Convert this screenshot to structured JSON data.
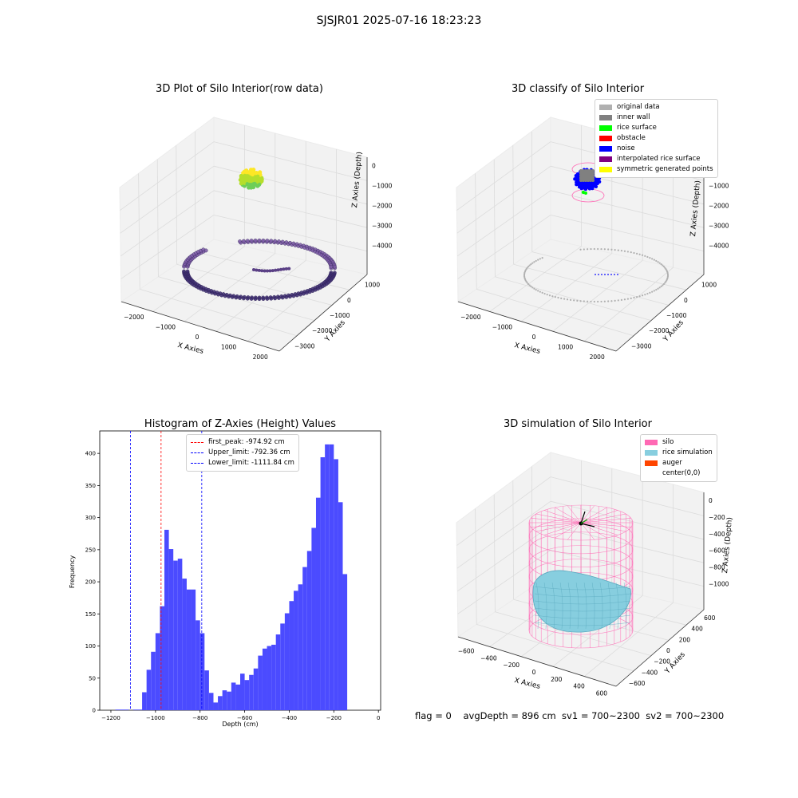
{
  "figure": {
    "suptitle": "SJSJR01 2025-07-16 18:23:23",
    "status_flag": "flag = 0",
    "status_text": "avgDepth = 896 cm  sv1 = 700~2300  sv2 = 700~2300"
  },
  "colors": {
    "hist_bar": "#4b4bff",
    "peak_line": "#ff0000",
    "limit_line": "#0000ff",
    "pane": "#f2f2f2",
    "silo": "#ff69b4",
    "rice": "#87cedf",
    "auger": "#ff4500"
  },
  "chart_data": [
    {
      "type": "scatter",
      "title": "3D Plot of Silo Interior(row data)",
      "xlabel": "X Axies",
      "ylabel": "Y Axies",
      "zlabel": "Z Axies (Depth)",
      "xticks": [
        "−2000",
        "−1000",
        "0",
        "1000",
        "2000"
      ],
      "yticks": [
        "1000",
        "0",
        "−1000",
        "−2000",
        "−3000"
      ],
      "zticks": [
        "0",
        "−1000",
        "−2000",
        "−3000",
        "−4000"
      ],
      "xlim": [
        -2300,
        2700
      ],
      "ylim": [
        -3000,
        1500
      ],
      "zlim": [
        -4500,
        200
      ],
      "colormap": "viridis"
    },
    {
      "type": "scatter",
      "title": "3D classify of Silo Interior",
      "xlabel": "X Axies",
      "ylabel": "Y Axies",
      "zlabel": "Z Axies (Depth)",
      "xticks": [
        "−2000",
        "−1000",
        "0",
        "1000",
        "2000"
      ],
      "yticks": [
        "1000",
        "0",
        "−1000",
        "−2000",
        "−3000"
      ],
      "zticks": [
        "0",
        "−1000",
        "−2000",
        "−3000",
        "−4000"
      ],
      "legend_position": "top-right",
      "legend": [
        {
          "label": "original data",
          "color": "#b0b0b0"
        },
        {
          "label": "inner wall",
          "color": "#808080"
        },
        {
          "label": "rice surface",
          "color": "#00ff00"
        },
        {
          "label": "obstacle",
          "color": "#ff0000"
        },
        {
          "label": "noise",
          "color": "#0000ff"
        },
        {
          "label": "interpolated rice surface",
          "color": "#800080"
        },
        {
          "label": "symmetric generated points",
          "color": "#ffff00"
        }
      ]
    },
    {
      "type": "bar",
      "title": "Histogram of Z-Axies (Height) Values",
      "xlabel": "Depth (cm)",
      "ylabel": "Frequency",
      "xlim": [
        -1250,
        10
      ],
      "ylim": [
        0,
        435
      ],
      "xticks": [
        -1200,
        -1000,
        -800,
        -600,
        -400,
        -200,
        0
      ],
      "yticks": [
        0,
        50,
        100,
        150,
        200,
        250,
        300,
        350,
        400
      ],
      "bin_width": 20,
      "bins_start": [
        -1180,
        -1160,
        -1140,
        -1120,
        -1100,
        -1080,
        -1060,
        -1040,
        -1020,
        -1000,
        -980,
        -960,
        -940,
        -920,
        -900,
        -880,
        -860,
        -840,
        -820,
        -800,
        -780,
        -760,
        -740,
        -720,
        -700,
        -680,
        -660,
        -640,
        -620,
        -600,
        -580,
        -560,
        -540,
        -520,
        -500,
        -480,
        -460,
        -440,
        -420,
        -400,
        -380,
        -360,
        -340,
        -320,
        -300,
        -280,
        -260,
        -240,
        -220,
        -200,
        -180,
        -160,
        -140,
        -120,
        -100,
        -80,
        -60
      ],
      "values": [
        1,
        1,
        1,
        0,
        1,
        1,
        28,
        63,
        91,
        120,
        162,
        281,
        251,
        233,
        236,
        205,
        188,
        188,
        140,
        120,
        62,
        27,
        12,
        22,
        31,
        29,
        43,
        40,
        57,
        47,
        55,
        65,
        85,
        96,
        100,
        102,
        118,
        135,
        151,
        170,
        186,
        196,
        223,
        248,
        284,
        331,
        394,
        414,
        414,
        391,
        324,
        212,
        0,
        0,
        0,
        0,
        0
      ],
      "vlines": [
        {
          "label": "first_peak: -974.92 cm",
          "x": -974.92,
          "color": "#ff0000"
        },
        {
          "label": "Upper_limit: -792.36 cm",
          "x": -792.36,
          "color": "#0000ff"
        },
        {
          "label": "Lower_limit: -1111.84 cm",
          "x": -1111.84,
          "color": "#0000ff"
        }
      ],
      "legend_position": "upper center"
    },
    {
      "type": "scatter",
      "title": "3D simulation of Silo Interior",
      "xlabel": "X Axies",
      "ylabel": "Y Axies",
      "zlabel": "Z Axies (Depth)",
      "xticks": [
        "−600",
        "−400",
        "−200",
        "0",
        "200",
        "400",
        "600"
      ],
      "yticks": [
        "600",
        "400",
        "200",
        "0",
        "−200",
        "−400",
        "−600"
      ],
      "zticks": [
        "0",
        "−200",
        "−400",
        "−600",
        "−800",
        "−1000"
      ],
      "legend_position": "top-right",
      "legend": [
        {
          "label": "silo",
          "color": "#ff69b4"
        },
        {
          "label": "rice simulation",
          "color": "#87cedf"
        },
        {
          "label": "auger",
          "color": "#ff4500"
        },
        {
          "label": "center(0,0)",
          "color": "#ffffff"
        }
      ]
    }
  ]
}
